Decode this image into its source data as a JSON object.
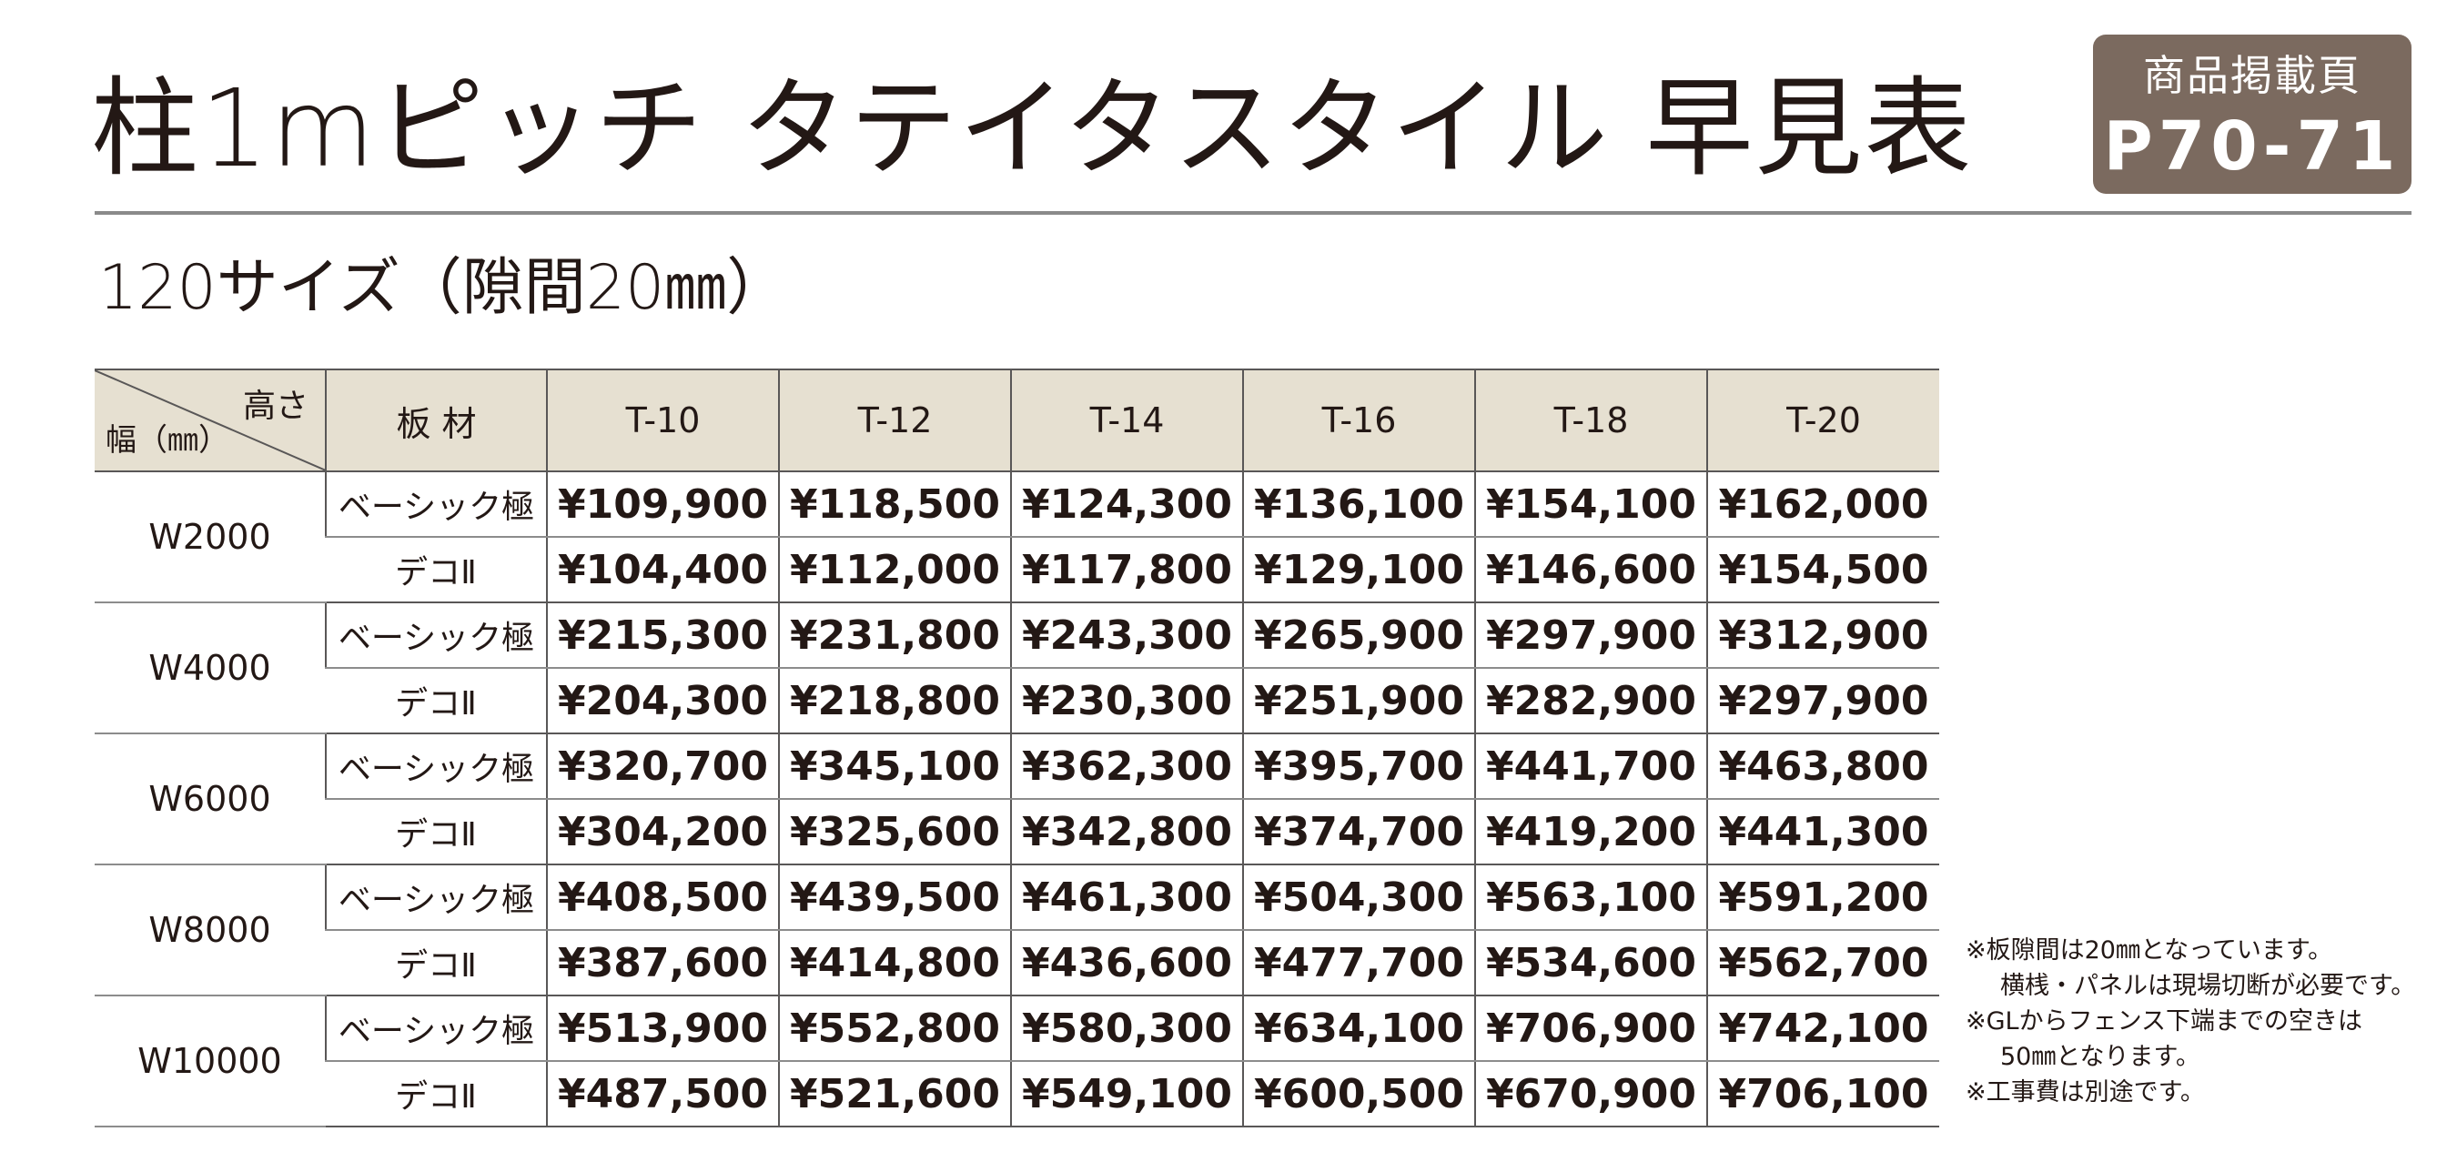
{
  "title": "柱1mピッチ タテイタスタイル 早見表",
  "page_badge": {
    "label": "商品掲載頁",
    "pages": "P70-71"
  },
  "subtitle": "120サイズ（隙間20㎜）",
  "table": {
    "corner_height_label": "高さ",
    "corner_width_label": "幅（㎜）",
    "material_header": "板 材",
    "height_columns": [
      "T-10",
      "T-12",
      "T-14",
      "T-16",
      "T-18",
      "T-20"
    ],
    "groups": [
      {
        "width": "W2000",
        "rows": [
          {
            "material": "ベーシック極",
            "prices": [
              "¥109,900",
              "¥118,500",
              "¥124,300",
              "¥136,100",
              "¥154,100",
              "¥162,000"
            ]
          },
          {
            "material": "デコⅡ",
            "prices": [
              "¥104,400",
              "¥112,000",
              "¥117,800",
              "¥129,100",
              "¥146,600",
              "¥154,500"
            ]
          }
        ]
      },
      {
        "width": "W4000",
        "rows": [
          {
            "material": "ベーシック極",
            "prices": [
              "¥215,300",
              "¥231,800",
              "¥243,300",
              "¥265,900",
              "¥297,900",
              "¥312,900"
            ]
          },
          {
            "material": "デコⅡ",
            "prices": [
              "¥204,300",
              "¥218,800",
              "¥230,300",
              "¥251,900",
              "¥282,900",
              "¥297,900"
            ]
          }
        ]
      },
      {
        "width": "W6000",
        "rows": [
          {
            "material": "ベーシック極",
            "prices": [
              "¥320,700",
              "¥345,100",
              "¥362,300",
              "¥395,700",
              "¥441,700",
              "¥463,800"
            ]
          },
          {
            "material": "デコⅡ",
            "prices": [
              "¥304,200",
              "¥325,600",
              "¥342,800",
              "¥374,700",
              "¥419,200",
              "¥441,300"
            ]
          }
        ]
      },
      {
        "width": "W8000",
        "rows": [
          {
            "material": "ベーシック極",
            "prices": [
              "¥408,500",
              "¥439,500",
              "¥461,300",
              "¥504,300",
              "¥563,100",
              "¥591,200"
            ]
          },
          {
            "material": "デコⅡ",
            "prices": [
              "¥387,600",
              "¥414,800",
              "¥436,600",
              "¥477,700",
              "¥534,600",
              "¥562,700"
            ]
          }
        ]
      },
      {
        "width": "W10000",
        "rows": [
          {
            "material": "ベーシック極",
            "prices": [
              "¥513,900",
              "¥552,800",
              "¥580,300",
              "¥634,100",
              "¥706,900",
              "¥742,100"
            ]
          },
          {
            "material": "デコⅡ",
            "prices": [
              "¥487,500",
              "¥521,600",
              "¥549,100",
              "¥600,500",
              "¥670,900",
              "¥706,100"
            ]
          }
        ]
      }
    ]
  },
  "notes": [
    "※板隙間は20㎜となっています。",
    "横桟・パネルは現場切断が必要です。",
    "※GLからフェンス下端までの空きは",
    "50㎜となります。",
    "※工事費は別途です。"
  ],
  "colors": {
    "badge_background": "#7b6a5f",
    "header_background": "#e6e0d1",
    "text": "#231815",
    "rule": "#8a8a8a"
  }
}
